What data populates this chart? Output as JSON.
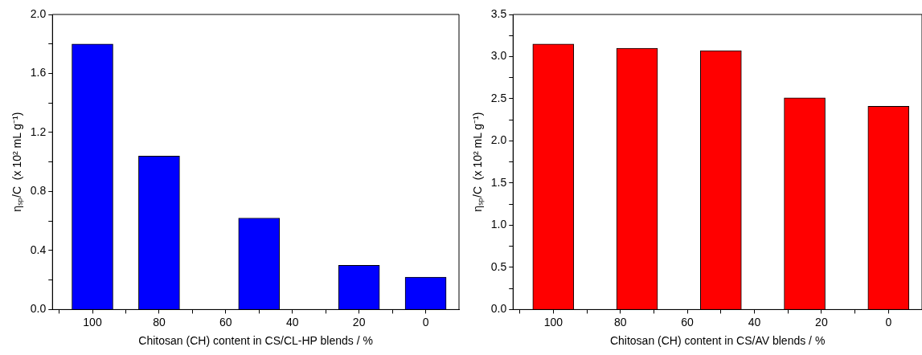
{
  "chart_data": [
    {
      "type": "bar",
      "xlabel": "Chitosan (CH) content in CS/CL-HP blends / %",
      "ylabel": "ηₛₚ/C  (x 10² mL g⁻¹)",
      "x": [
        100,
        80,
        50,
        20,
        0
      ],
      "values": [
        1.8,
        1.04,
        0.62,
        0.3,
        0.22
      ],
      "color": "#0000ff",
      "xlim": [
        112,
        -10
      ],
      "xticks": [
        {
          "value": 110,
          "label": null
        },
        100,
        {
          "value": 90,
          "label": null
        },
        80,
        {
          "value": 70,
          "label": null
        },
        60,
        {
          "value": 50,
          "label": null
        },
        40,
        {
          "value": 30,
          "label": null
        },
        20,
        {
          "value": 10,
          "label": null
        },
        0
      ],
      "ylim": [
        0,
        2.0
      ],
      "yticks": [
        {
          "value": 0,
          "label": "0.0"
        },
        {
          "value": 0.2,
          "label": null
        },
        0.4,
        {
          "value": 0.6,
          "label": null
        },
        0.8,
        {
          "value": 1.0,
          "label": null
        },
        1.2,
        {
          "value": 1.4,
          "label": null
        },
        1.6,
        {
          "value": 1.8,
          "label": null
        },
        {
          "value": 2.0,
          "label": "2.0"
        }
      ],
      "grid": false,
      "legend": false
    },
    {
      "type": "bar",
      "xlabel": "Chitosan (CH) content in CS/AV blends / %",
      "ylabel": "ηₛₚ/C  (x 10² mL g⁻¹)",
      "x": [
        100,
        75,
        50,
        25,
        0
      ],
      "values": [
        3.15,
        3.1,
        3.07,
        2.51,
        2.41
      ],
      "color": "#ff0000",
      "xlim": [
        112,
        -10
      ],
      "xticks": [
        {
          "value": 110,
          "label": null
        },
        100,
        {
          "value": 90,
          "label": null
        },
        80,
        {
          "value": 70,
          "label": null
        },
        60,
        {
          "value": 50,
          "label": null
        },
        40,
        {
          "value": 30,
          "label": null
        },
        20,
        {
          "value": 10,
          "label": null
        },
        0
      ],
      "ylim": [
        0,
        3.5
      ],
      "yticks": [
        {
          "value": 0,
          "label": "0.0"
        },
        {
          "value": 0.25,
          "label": null
        },
        0.5,
        {
          "value": 0.75,
          "label": null
        },
        {
          "value": 1.0,
          "label": "1.0"
        },
        {
          "value": 1.25,
          "label": null
        },
        1.5,
        {
          "value": 1.75,
          "label": null
        },
        {
          "value": 2.0,
          "label": "2.0"
        },
        {
          "value": 2.25,
          "label": null
        },
        2.5,
        {
          "value": 2.75,
          "label": null
        },
        {
          "value": 3.0,
          "label": "3.0"
        },
        {
          "value": 3.25,
          "label": null
        },
        3.5
      ],
      "grid": false,
      "legend": false
    }
  ]
}
